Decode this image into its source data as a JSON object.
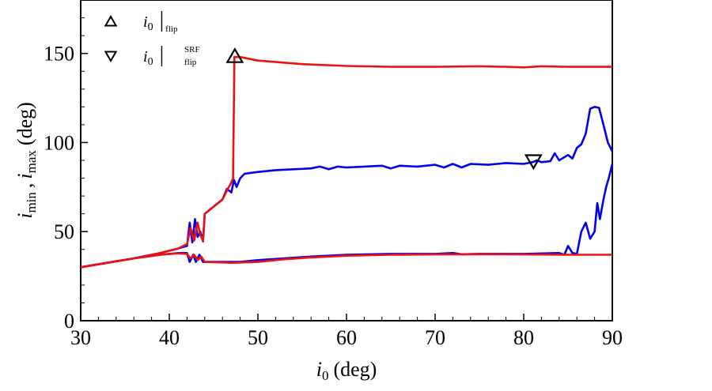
{
  "chart_data": {
    "type": "line",
    "xlabel": {
      "var": "i",
      "sub": "0",
      "unit": "(deg)"
    },
    "ylabel": {
      "var1": "i",
      "sub1": "min",
      "sep": ",",
      "var2": "i",
      "sub2": "max",
      "unit": "(deg)"
    },
    "xlim": [
      30,
      90
    ],
    "ylim": [
      0,
      180
    ],
    "xticks": [
      30,
      40,
      50,
      60,
      70,
      80,
      90
    ],
    "yticks": [
      0,
      50,
      100,
      150
    ],
    "colors": {
      "blue": "#0000ee",
      "red": "#ee1111",
      "frame": "#000000"
    },
    "series": [
      {
        "name": "blue-upper",
        "color": "#0000ee",
        "points": [
          [
            30,
            30
          ],
          [
            33,
            32.5
          ],
          [
            36,
            35
          ],
          [
            39,
            38
          ],
          [
            41,
            40.5
          ],
          [
            42,
            42
          ],
          [
            42.3,
            55
          ],
          [
            42.6,
            44
          ],
          [
            42.9,
            57
          ],
          [
            43.2,
            47
          ],
          [
            43.5,
            50
          ],
          [
            43.8,
            44.5
          ],
          [
            44,
            60
          ],
          [
            45,
            64
          ],
          [
            46,
            68
          ],
          [
            46.5,
            74
          ],
          [
            47,
            72
          ],
          [
            47.3,
            79
          ],
          [
            47.6,
            75
          ],
          [
            48,
            80
          ],
          [
            48.5,
            82.5
          ],
          [
            50,
            83.5
          ],
          [
            52,
            84.5
          ],
          [
            54,
            85
          ],
          [
            56,
            85.5
          ],
          [
            57,
            86.5
          ],
          [
            58,
            85
          ],
          [
            59,
            86.5
          ],
          [
            60,
            86
          ],
          [
            62,
            86.5
          ],
          [
            64,
            87
          ],
          [
            65,
            85.5
          ],
          [
            66,
            87
          ],
          [
            68,
            86.5
          ],
          [
            70,
            87.5
          ],
          [
            71,
            86
          ],
          [
            72,
            88
          ],
          [
            73,
            86
          ],
          [
            74,
            88
          ],
          [
            76,
            87.5
          ],
          [
            78,
            88.5
          ],
          [
            80,
            88
          ],
          [
            81,
            89
          ],
          [
            81.5,
            90
          ],
          [
            82,
            89
          ],
          [
            83,
            89.5
          ],
          [
            83.5,
            94
          ],
          [
            84,
            90
          ],
          [
            85,
            93
          ],
          [
            85.5,
            91
          ],
          [
            86,
            97
          ],
          [
            86.5,
            99
          ],
          [
            87,
            105
          ],
          [
            87.5,
            119
          ],
          [
            88,
            120
          ],
          [
            88.5,
            119.5
          ],
          [
            89,
            110
          ],
          [
            89.5,
            100
          ],
          [
            90,
            95
          ]
        ]
      },
      {
        "name": "red-upper",
        "color": "#ee1111",
        "points": [
          [
            30,
            30
          ],
          [
            33,
            32.5
          ],
          [
            36,
            35
          ],
          [
            39,
            38
          ],
          [
            41,
            40.5
          ],
          [
            42,
            43
          ],
          [
            42.4,
            52
          ],
          [
            42.8,
            45
          ],
          [
            43.2,
            55
          ],
          [
            43.5,
            48
          ],
          [
            43.8,
            45
          ],
          [
            44,
            60
          ],
          [
            45,
            64
          ],
          [
            46,
            68
          ],
          [
            46.5,
            73
          ],
          [
            47,
            77.5
          ],
          [
            47.2,
            80
          ],
          [
            47.35,
            148
          ],
          [
            48,
            148
          ],
          [
            50,
            146
          ],
          [
            55,
            144
          ],
          [
            60,
            143
          ],
          [
            65,
            142.5
          ],
          [
            70,
            142.5
          ],
          [
            75,
            142.8
          ],
          [
            78,
            142.5
          ],
          [
            80,
            142.2
          ],
          [
            82,
            142.8
          ],
          [
            85,
            142.5
          ],
          [
            90,
            142.5
          ]
        ]
      },
      {
        "name": "blue-lower",
        "color": "#0000ee",
        "points": [
          [
            30,
            30
          ],
          [
            33,
            32.5
          ],
          [
            36,
            35
          ],
          [
            39,
            37
          ],
          [
            41,
            38
          ],
          [
            42,
            38
          ],
          [
            42.3,
            33
          ],
          [
            42.7,
            37
          ],
          [
            43,
            33
          ],
          [
            43.4,
            37
          ],
          [
            43.8,
            33
          ],
          [
            46,
            33
          ],
          [
            48,
            33
          ],
          [
            50,
            34
          ],
          [
            53,
            35
          ],
          [
            56,
            36
          ],
          [
            60,
            37
          ],
          [
            65,
            37.5
          ],
          [
            70,
            37.5
          ],
          [
            72,
            38
          ],
          [
            73,
            37.3
          ],
          [
            75,
            37.5
          ],
          [
            80,
            37.5
          ],
          [
            84,
            38
          ],
          [
            84.6,
            37
          ],
          [
            85,
            42
          ],
          [
            85.5,
            38
          ],
          [
            86,
            37.5
          ],
          [
            86.5,
            50
          ],
          [
            87,
            55
          ],
          [
            87.5,
            46
          ],
          [
            88,
            50
          ],
          [
            88.3,
            66
          ],
          [
            88.6,
            57
          ],
          [
            89,
            68
          ],
          [
            89.3,
            75
          ],
          [
            89.6,
            80
          ],
          [
            90,
            88
          ]
        ]
      },
      {
        "name": "red-lower",
        "color": "#ee1111",
        "points": [
          [
            30,
            30
          ],
          [
            33,
            32.5
          ],
          [
            36,
            35
          ],
          [
            39,
            37
          ],
          [
            41,
            37.8
          ],
          [
            42,
            37.5
          ],
          [
            42.4,
            35
          ],
          [
            42.8,
            37
          ],
          [
            43.2,
            34
          ],
          [
            43.6,
            36
          ],
          [
            44,
            33
          ],
          [
            47,
            32.5
          ],
          [
            50,
            33
          ],
          [
            53,
            34.5
          ],
          [
            56,
            35.5
          ],
          [
            60,
            36.5
          ],
          [
            65,
            37
          ],
          [
            70,
            37.2
          ],
          [
            75,
            37.3
          ],
          [
            80,
            37.2
          ],
          [
            85,
            37
          ],
          [
            90,
            37
          ]
        ]
      }
    ],
    "markers": [
      {
        "name": "flip-marker",
        "shape": "triangle-up",
        "x": 47.4,
        "y": 148
      },
      {
        "name": "srf-flip-marker",
        "shape": "triangle-down",
        "x": 81.1,
        "y": 90
      }
    ],
    "legend": {
      "placement": "top-left",
      "entries": [
        {
          "symbol": "triangle-up",
          "var": "i",
          "sub": "0",
          "bar": "|",
          "lower": "flip",
          "upper": ""
        },
        {
          "symbol": "triangle-down",
          "var": "i",
          "sub": "0",
          "bar": "|",
          "lower": "flip",
          "upper": "SRF"
        }
      ]
    }
  }
}
